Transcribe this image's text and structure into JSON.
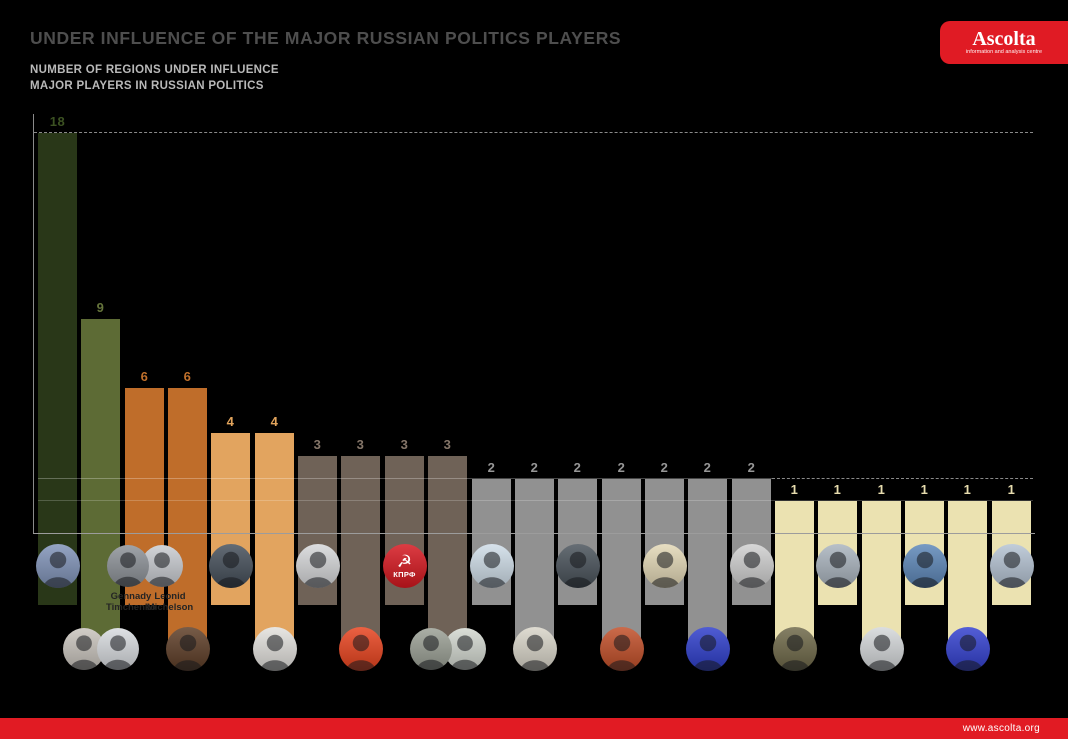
{
  "header": {
    "title": "UNDER INFLUENCE OF THE MAJOR RUSSIAN POLITICS PLAYERS",
    "subtitle_line1": "NUMBER OF REGIONS UNDER INFLUENCE",
    "subtitle_line2": "MAJOR PLAYERS IN RUSSIAN POLITICS",
    "logo": {
      "text": "Ascolta",
      "tagline": "information and analysis centre",
      "bg": "#e01b24",
      "fg": "#ffffff"
    }
  },
  "footer": {
    "url": "www.ascolta.org",
    "bg": "#e11b23",
    "fg": "#ffffff"
  },
  "colors": {
    "background": "#000000",
    "title": "#4e4e4e",
    "subtitle": "#b9b9b9",
    "axis": "#8a8a8a",
    "baseline": "#9c9c9c",
    "accent_red": "#e01b24"
  },
  "chart_data": {
    "type": "bar",
    "title": "NUMBER OF REGIONS UNDER INFLUENCE MAJOR PLAYERS IN RUSSIAN POLITICS",
    "xlabel": "",
    "ylabel": "",
    "ylim": [
      0,
      18
    ],
    "gridline_levels": [
      18,
      2,
      1
    ],
    "legend": "none",
    "values": [
      18,
      9,
      6,
      6,
      4,
      4,
      3,
      3,
      3,
      3,
      2,
      2,
      2,
      2,
      2,
      2,
      2,
      1,
      1,
      1,
      1,
      1,
      1
    ],
    "players": [
      {
        "value": 18,
        "bar_color": "#293718",
        "value_color": "#3c5222",
        "avatar_row": 1,
        "avatars": [
          {
            "slug": "player-avatar-01",
            "bg": "#8093b8"
          }
        ]
      },
      {
        "value": 9,
        "bar_color": "#5d6b35",
        "value_color": "#66753c",
        "avatar_row": 2,
        "avatars": [
          {
            "slug": "player-avatar-02a",
            "bg": "#c9c4bd"
          },
          {
            "slug": "player-avatar-02b",
            "bg": "#d8dbdf",
            "on_top": true
          }
        ]
      },
      {
        "value": 6,
        "bar_color": "#bf6d2a",
        "value_color": "#c0702b",
        "avatar_row": 1,
        "avatars": [
          {
            "slug": "player-avatar-timchenko",
            "bg": "#8d9298",
            "on_top": true
          },
          {
            "slug": "player-avatar-michelson",
            "bg": "#c9ccd1"
          }
        ],
        "name_labels": [
          {
            "line1": "Gennady",
            "line2": "Timchenko",
            "x": 131
          },
          {
            "line1": "Leonid",
            "line2": "Michelson",
            "x": 170
          }
        ]
      },
      {
        "value": 6,
        "bar_color": "#bf6d2a",
        "value_color": "#c0702b",
        "avatar_row": 2,
        "avatars": [
          {
            "slug": "player-avatar-04",
            "bg": "#5d3d26"
          }
        ]
      },
      {
        "value": 4,
        "bar_color": "#e2a45f",
        "value_color": "#e2a45c",
        "avatar_row": 1,
        "avatars": [
          {
            "slug": "player-avatar-05",
            "bg": "#454f5a"
          }
        ]
      },
      {
        "value": 4,
        "bar_color": "#e2a45f",
        "value_color": "#e2a45c",
        "avatar_row": 2,
        "avatars": [
          {
            "slug": "player-avatar-06",
            "bg": "#e3e1dd"
          }
        ]
      },
      {
        "value": 3,
        "bar_color": "#6f6257",
        "value_color": "#857669",
        "avatar_row": 1,
        "avatars": [
          {
            "slug": "player-avatar-07",
            "bg": "#d6d7d9"
          }
        ]
      },
      {
        "value": 3,
        "bar_color": "#6f6257",
        "value_color": "#857669",
        "avatar_row": 2,
        "avatars": [
          {
            "slug": "player-avatar-08",
            "bg": "#e8431e"
          }
        ]
      },
      {
        "value": 3,
        "bar_color": "#6f6257",
        "value_color": "#857669",
        "avatar_row": 1,
        "avatars": [
          {
            "slug": "kprf-party-logo",
            "kind": "logo",
            "bg": "#d6171f",
            "glyph": "☭",
            "text": "КПРФ"
          }
        ]
      },
      {
        "value": 3,
        "bar_color": "#6f6257",
        "value_color": "#857669",
        "avatar_row": 2,
        "avatars": [
          {
            "slug": "player-avatar-10a",
            "bg": "#9ba095",
            "on_top": true
          },
          {
            "slug": "player-avatar-10b",
            "bg": "#d3d8d0"
          }
        ]
      },
      {
        "value": 2,
        "bar_color": "#919191",
        "value_color": "#969696",
        "avatar_row": 1,
        "avatars": [
          {
            "slug": "player-avatar-11",
            "bg": "#cfdde8"
          }
        ]
      },
      {
        "value": 2,
        "bar_color": "#919191",
        "value_color": "#969696",
        "avatar_row": 2,
        "avatars": [
          {
            "slug": "player-avatar-12",
            "bg": "#d9d5c9"
          }
        ]
      },
      {
        "value": 2,
        "bar_color": "#919191",
        "value_color": "#969696",
        "avatar_row": 1,
        "avatars": [
          {
            "slug": "player-avatar-13",
            "bg": "#49525a"
          }
        ]
      },
      {
        "value": 2,
        "bar_color": "#919191",
        "value_color": "#969696",
        "avatar_row": 2,
        "avatars": [
          {
            "slug": "player-avatar-14",
            "bg": "#c14e28"
          }
        ]
      },
      {
        "value": 2,
        "bar_color": "#919191",
        "value_color": "#969696",
        "avatar_row": 1,
        "avatars": [
          {
            "slug": "player-avatar-15",
            "bg": "#e3d8b6"
          }
        ]
      },
      {
        "value": 2,
        "bar_color": "#919191",
        "value_color": "#969696",
        "avatar_row": 2,
        "avatars": [
          {
            "slug": "player-avatar-16",
            "bg": "#2e3ecb"
          }
        ]
      },
      {
        "value": 2,
        "bar_color": "#919191",
        "value_color": "#969696",
        "avatar_row": 1,
        "avatars": [
          {
            "slug": "player-avatar-17",
            "bg": "#d0d0d0"
          }
        ]
      },
      {
        "value": 1,
        "bar_color": "#ebe2b1",
        "value_color": "#e7dcae",
        "avatar_row": 2,
        "avatars": [
          {
            "slug": "player-avatar-18",
            "bg": "#6e6848"
          }
        ]
      },
      {
        "value": 1,
        "bar_color": "#ebe2b1",
        "value_color": "#e7dcae",
        "avatar_row": 1,
        "avatars": [
          {
            "slug": "player-avatar-19",
            "bg": "#aab4be"
          }
        ]
      },
      {
        "value": 1,
        "bar_color": "#ebe2b1",
        "value_color": "#e7dcae",
        "avatar_row": 2,
        "avatars": [
          {
            "slug": "player-avatar-20",
            "bg": "#d5d8da"
          }
        ]
      },
      {
        "value": 1,
        "bar_color": "#ebe2b1",
        "value_color": "#e7dcae",
        "avatar_row": 1,
        "avatars": [
          {
            "slug": "player-avatar-21",
            "bg": "#5d87b8"
          }
        ]
      },
      {
        "value": 1,
        "bar_color": "#ebe2b1",
        "value_color": "#e7dcae",
        "avatar_row": 2,
        "avatars": [
          {
            "slug": "player-avatar-22",
            "bg": "#3340cf"
          }
        ]
      },
      {
        "value": 1,
        "bar_color": "#ebe2b1",
        "value_color": "#e7dcae",
        "avatar_row": 1,
        "avatars": [
          {
            "slug": "player-avatar-23",
            "bg": "#b5c3d3"
          }
        ]
      }
    ]
  }
}
